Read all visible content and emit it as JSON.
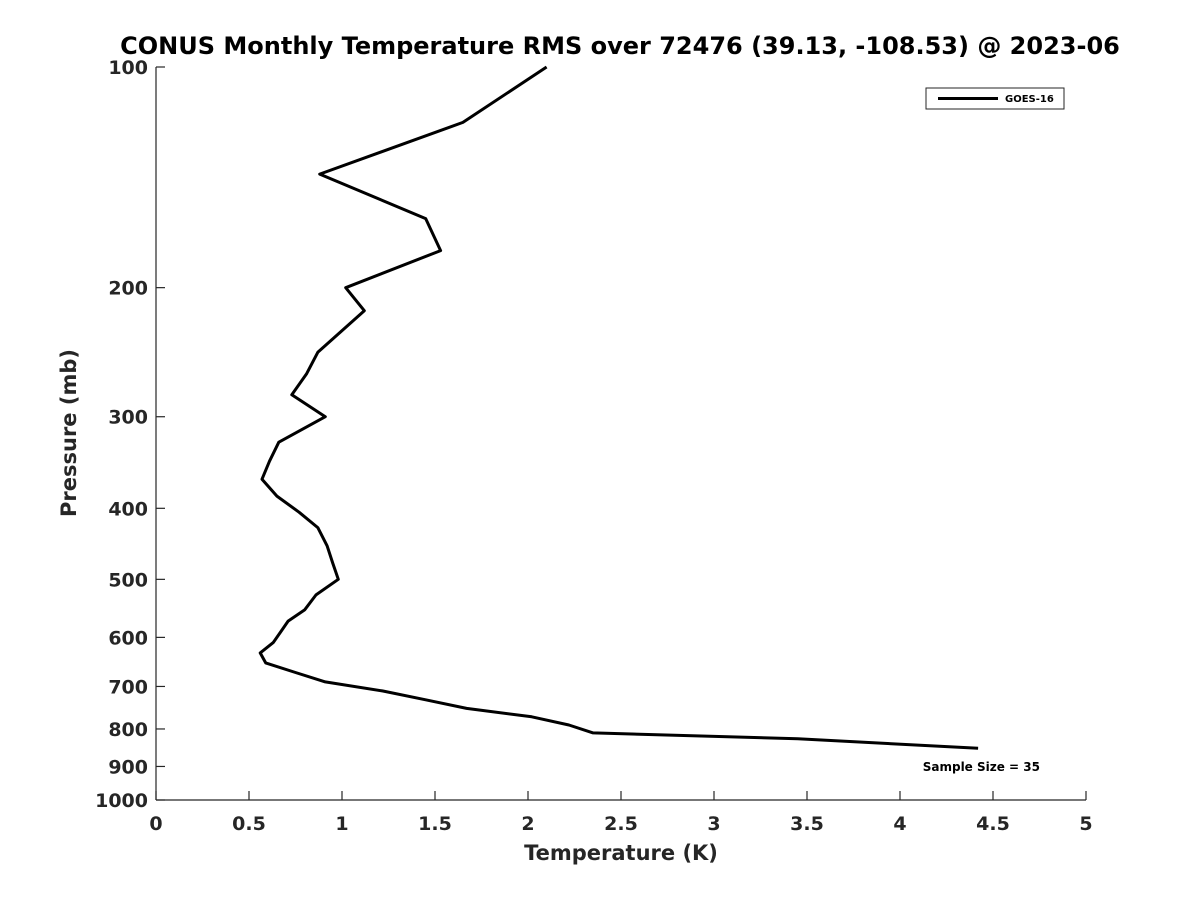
{
  "chart_data": {
    "type": "line",
    "title": "CONUS Monthly Temperature RMS over 72476 (39.13, -108.53) @ 2023-06",
    "xlabel": "Temperature (K)",
    "ylabel": "Pressure (mb)",
    "xlim": [
      0,
      5
    ],
    "ylim": [
      100,
      1000
    ],
    "y_scale": "log",
    "y_reversed": true,
    "grid": false,
    "legend_position": "top-right",
    "x_ticks": [
      0,
      0.5,
      1,
      1.5,
      2,
      2.5,
      3,
      3.5,
      4,
      4.5,
      5
    ],
    "x_tick_labels": [
      "0",
      "0.5",
      "1",
      "1.5",
      "2",
      "2.5",
      "3",
      "3.5",
      "4",
      "4.5",
      "5"
    ],
    "y_ticks": [
      100,
      200,
      300,
      400,
      500,
      600,
      700,
      800,
      900,
      1000
    ],
    "y_tick_labels": [
      "100",
      "200",
      "300",
      "400",
      "500",
      "600",
      "700",
      "800",
      "900",
      "1000"
    ],
    "annotation": "Sample Size = 35",
    "series": [
      {
        "name": "GOES-16",
        "color": "#000000",
        "points": [
          {
            "x": 2.1,
            "y": 100
          },
          {
            "x": 1.65,
            "y": 119
          },
          {
            "x": 0.88,
            "y": 140
          },
          {
            "x": 1.45,
            "y": 161
          },
          {
            "x": 1.53,
            "y": 178
          },
          {
            "x": 1.02,
            "y": 200
          },
          {
            "x": 1.12,
            "y": 215
          },
          {
            "x": 0.87,
            "y": 245
          },
          {
            "x": 0.81,
            "y": 262
          },
          {
            "x": 0.73,
            "y": 280
          },
          {
            "x": 0.91,
            "y": 300
          },
          {
            "x": 0.66,
            "y": 325
          },
          {
            "x": 0.61,
            "y": 345
          },
          {
            "x": 0.57,
            "y": 365
          },
          {
            "x": 0.65,
            "y": 385
          },
          {
            "x": 0.77,
            "y": 405
          },
          {
            "x": 0.87,
            "y": 425
          },
          {
            "x": 0.92,
            "y": 450
          },
          {
            "x": 0.95,
            "y": 475
          },
          {
            "x": 0.98,
            "y": 500
          },
          {
            "x": 0.86,
            "y": 525
          },
          {
            "x": 0.8,
            "y": 550
          },
          {
            "x": 0.71,
            "y": 570
          },
          {
            "x": 0.67,
            "y": 590
          },
          {
            "x": 0.63,
            "y": 610
          },
          {
            "x": 0.56,
            "y": 630
          },
          {
            "x": 0.59,
            "y": 650
          },
          {
            "x": 0.75,
            "y": 670
          },
          {
            "x": 0.91,
            "y": 690
          },
          {
            "x": 1.22,
            "y": 710
          },
          {
            "x": 1.45,
            "y": 730
          },
          {
            "x": 1.67,
            "y": 750
          },
          {
            "x": 2.02,
            "y": 770
          },
          {
            "x": 2.22,
            "y": 790
          },
          {
            "x": 2.35,
            "y": 810
          },
          {
            "x": 3.45,
            "y": 825
          },
          {
            "x": 4.42,
            "y": 850
          }
        ]
      }
    ]
  }
}
